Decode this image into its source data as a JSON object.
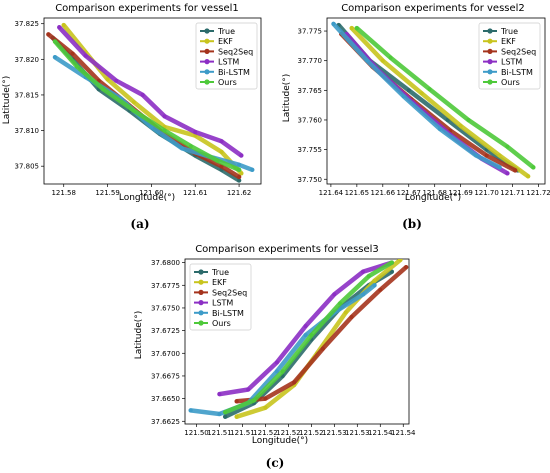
{
  "colors": {
    "True": "#2c6b6b",
    "EKF": "#c8c41e",
    "Seq2Seq": "#a5341d",
    "LSTM": "#8c2fc4",
    "Bi-LSTM": "#3d9bc8",
    "Ours": "#4ec93a"
  },
  "captions": [
    "(a)",
    "(b)",
    "(c)"
  ],
  "chart_data": [
    {
      "type": "line",
      "title": "Comparison experiments for vessel1",
      "xlabel": "Longitude(°)",
      "ylabel": "Latitude(°)",
      "xlim": [
        121.5755,
        121.625
      ],
      "ylim": [
        37.8025,
        37.8258
      ],
      "xticks": [
        121.58,
        121.59,
        121.6,
        121.61,
        121.62
      ],
      "xtick_labels": [
        "121.58",
        "121.59",
        "121.60",
        "121.61",
        "121.62"
      ],
      "yticks": [
        37.805,
        37.81,
        37.815,
        37.82,
        37.825
      ],
      "ytick_labels": [
        "37.805",
        "37.810",
        "37.815",
        "37.820",
        "37.825"
      ],
      "legend_position": "top-right",
      "series": [
        {
          "name": "True",
          "x": [
            121.5775,
            121.582,
            121.588,
            121.595,
            121.602,
            121.61,
            121.616,
            121.62
          ],
          "y": [
            37.823,
            37.82,
            37.8158,
            37.8128,
            37.8095,
            37.8065,
            37.8045,
            37.803
          ]
        },
        {
          "name": "EKF",
          "x": [
            121.58,
            121.585,
            121.59,
            121.596,
            121.603,
            121.61,
            121.616,
            121.6205
          ],
          "y": [
            37.8248,
            37.821,
            37.8172,
            37.814,
            37.8105,
            37.8093,
            37.807,
            37.804
          ]
        },
        {
          "name": "Seq2Seq",
          "x": [
            121.5765,
            121.582,
            121.588,
            121.595,
            121.602,
            121.61,
            121.616,
            121.62
          ],
          "y": [
            37.8235,
            37.8208,
            37.817,
            37.8135,
            37.81,
            37.8068,
            37.805,
            37.8035
          ]
        },
        {
          "name": "LSTM",
          "x": [
            121.579,
            121.585,
            121.592,
            121.598,
            121.603,
            121.61,
            121.616,
            121.6205
          ],
          "y": [
            37.8245,
            37.8205,
            37.817,
            37.815,
            37.812,
            37.8098,
            37.8085,
            37.8065
          ]
        },
        {
          "name": "Bi-LSTM",
          "x": [
            121.578,
            121.585,
            121.593,
            121.6,
            121.607,
            121.614,
            121.62,
            121.623
          ],
          "y": [
            37.8203,
            37.8175,
            37.8145,
            37.8105,
            37.8075,
            37.8062,
            37.8052,
            37.8045
          ]
        },
        {
          "name": "Ours",
          "x": [
            121.578,
            121.583,
            121.589,
            121.596,
            121.603,
            121.609,
            121.615,
            121.62
          ],
          "y": [
            37.8225,
            37.819,
            37.8158,
            37.8128,
            37.81,
            37.8078,
            37.8058,
            37.8045
          ]
        }
      ]
    },
    {
      "type": "line",
      "title": "Comparison experiments for vessel2",
      "xlabel": "Longitude(°)",
      "ylabel": "Latitude(°)",
      "xlim": [
        121.6385,
        121.7225
      ],
      "ylim": [
        37.7492,
        37.7772
      ],
      "xticks": [
        121.64,
        121.65,
        121.66,
        121.67,
        121.68,
        121.69,
        121.7,
        121.71,
        121.72
      ],
      "xtick_labels": [
        "121.64",
        "121.65",
        "121.66",
        "121.67",
        "121.68",
        "121.69",
        "121.70",
        "121.71",
        "121.72"
      ],
      "yticks": [
        37.75,
        37.755,
        37.76,
        37.765,
        37.77,
        37.775
      ],
      "ytick_labels": [
        "37.750",
        "37.755",
        "37.760",
        "37.765",
        "37.770",
        "37.775"
      ],
      "legend_position": "top-right",
      "series": [
        {
          "name": "True",
          "x": [
            121.643,
            121.655,
            121.67,
            121.685,
            121.7,
            121.712
          ],
          "y": [
            37.776,
            37.77,
            37.765,
            37.76,
            37.755,
            37.7515
          ]
        },
        {
          "name": "EKF",
          "x": [
            121.648,
            121.66,
            121.675,
            121.69,
            121.705,
            121.716
          ],
          "y": [
            37.7755,
            37.77,
            37.7645,
            37.759,
            37.754,
            37.7505
          ]
        },
        {
          "name": "Seq2Seq",
          "x": [
            121.644,
            121.656,
            121.671,
            121.686,
            121.7,
            121.711
          ],
          "y": [
            37.7745,
            37.769,
            37.7635,
            37.7582,
            37.754,
            37.7515
          ]
        },
        {
          "name": "LSTM",
          "x": [
            121.646,
            121.658,
            121.672,
            121.686,
            121.698,
            121.708
          ],
          "y": [
            37.7745,
            37.7685,
            37.7628,
            37.7575,
            37.7535,
            37.751
          ]
        },
        {
          "name": "Bi-LSTM",
          "x": [
            121.641,
            121.654,
            121.668,
            121.682,
            121.696,
            121.705
          ],
          "y": [
            37.7762,
            37.77,
            37.764,
            37.7585,
            37.754,
            37.752
          ]
        },
        {
          "name": "Ours",
          "x": [
            121.65,
            121.663,
            121.678,
            121.693,
            121.708,
            121.718
          ],
          "y": [
            37.7755,
            37.7705,
            37.7652,
            37.76,
            37.7555,
            37.752
          ]
        }
      ]
    },
    {
      "type": "line",
      "title": "Comparison experiments for vessel3",
      "xlabel": "Longitude(°)",
      "ylabel": "Latitude(°)",
      "xlim": [
        121.502,
        121.541
      ],
      "ylim": [
        37.6622,
        37.6804
      ],
      "xticks": [
        121.504,
        121.508,
        121.512,
        121.516,
        121.52,
        121.524,
        121.528,
        121.532,
        121.536,
        121.54
      ],
      "xtick_labels": [
        "121.50",
        "121.51",
        "121.51",
        "121.52",
        "121.52",
        "121.52",
        "121.53",
        "121.53",
        "121.54",
        "121.54"
      ],
      "yticks": [
        37.6625,
        37.665,
        37.6675,
        37.67,
        37.6725,
        37.675,
        37.6775,
        37.68
      ],
      "ytick_labels": [
        "37.6625",
        "37.6650",
        "37.6675",
        "37.6700",
        "37.6725",
        "37.6750",
        "37.6775",
        "37.6800"
      ],
      "legend_position": "top-left",
      "series": [
        {
          "name": "True",
          "x": [
            121.509,
            121.514,
            121.519,
            121.524,
            121.529,
            121.534,
            121.538
          ],
          "y": [
            37.663,
            37.6645,
            37.6675,
            37.6715,
            37.675,
            37.6775,
            37.679
          ]
        },
        {
          "name": "EKF",
          "x": [
            121.511,
            121.516,
            121.521,
            121.525,
            121.53,
            121.535,
            121.5395
          ],
          "y": [
            37.663,
            37.664,
            37.6665,
            37.67,
            37.6745,
            37.678,
            37.6803
          ]
        },
        {
          "name": "Seq2Seq",
          "x": [
            121.511,
            121.516,
            121.521,
            121.526,
            121.531,
            121.536,
            121.5405
          ],
          "y": [
            37.6647,
            37.665,
            37.6668,
            37.6705,
            37.674,
            37.677,
            37.6795
          ]
        },
        {
          "name": "LSTM",
          "x": [
            121.508,
            121.513,
            121.518,
            121.523,
            121.528,
            121.533,
            121.538
          ],
          "y": [
            37.6655,
            37.666,
            37.669,
            37.673,
            37.6765,
            37.679,
            37.68
          ]
        },
        {
          "name": "Bi-LSTM",
          "x": [
            121.503,
            121.508,
            121.513,
            121.518,
            121.523,
            121.528,
            121.533,
            121.535
          ],
          "y": [
            37.6637,
            37.6633,
            37.6645,
            37.668,
            37.672,
            37.6745,
            37.6765,
            37.6775
          ]
        },
        {
          "name": "Ours",
          "x": [
            121.509,
            121.514,
            121.519,
            121.524,
            121.529,
            121.534,
            121.538
          ],
          "y": [
            37.6635,
            37.6648,
            37.668,
            37.672,
            37.6755,
            37.6785,
            37.68
          ]
        }
      ]
    }
  ]
}
